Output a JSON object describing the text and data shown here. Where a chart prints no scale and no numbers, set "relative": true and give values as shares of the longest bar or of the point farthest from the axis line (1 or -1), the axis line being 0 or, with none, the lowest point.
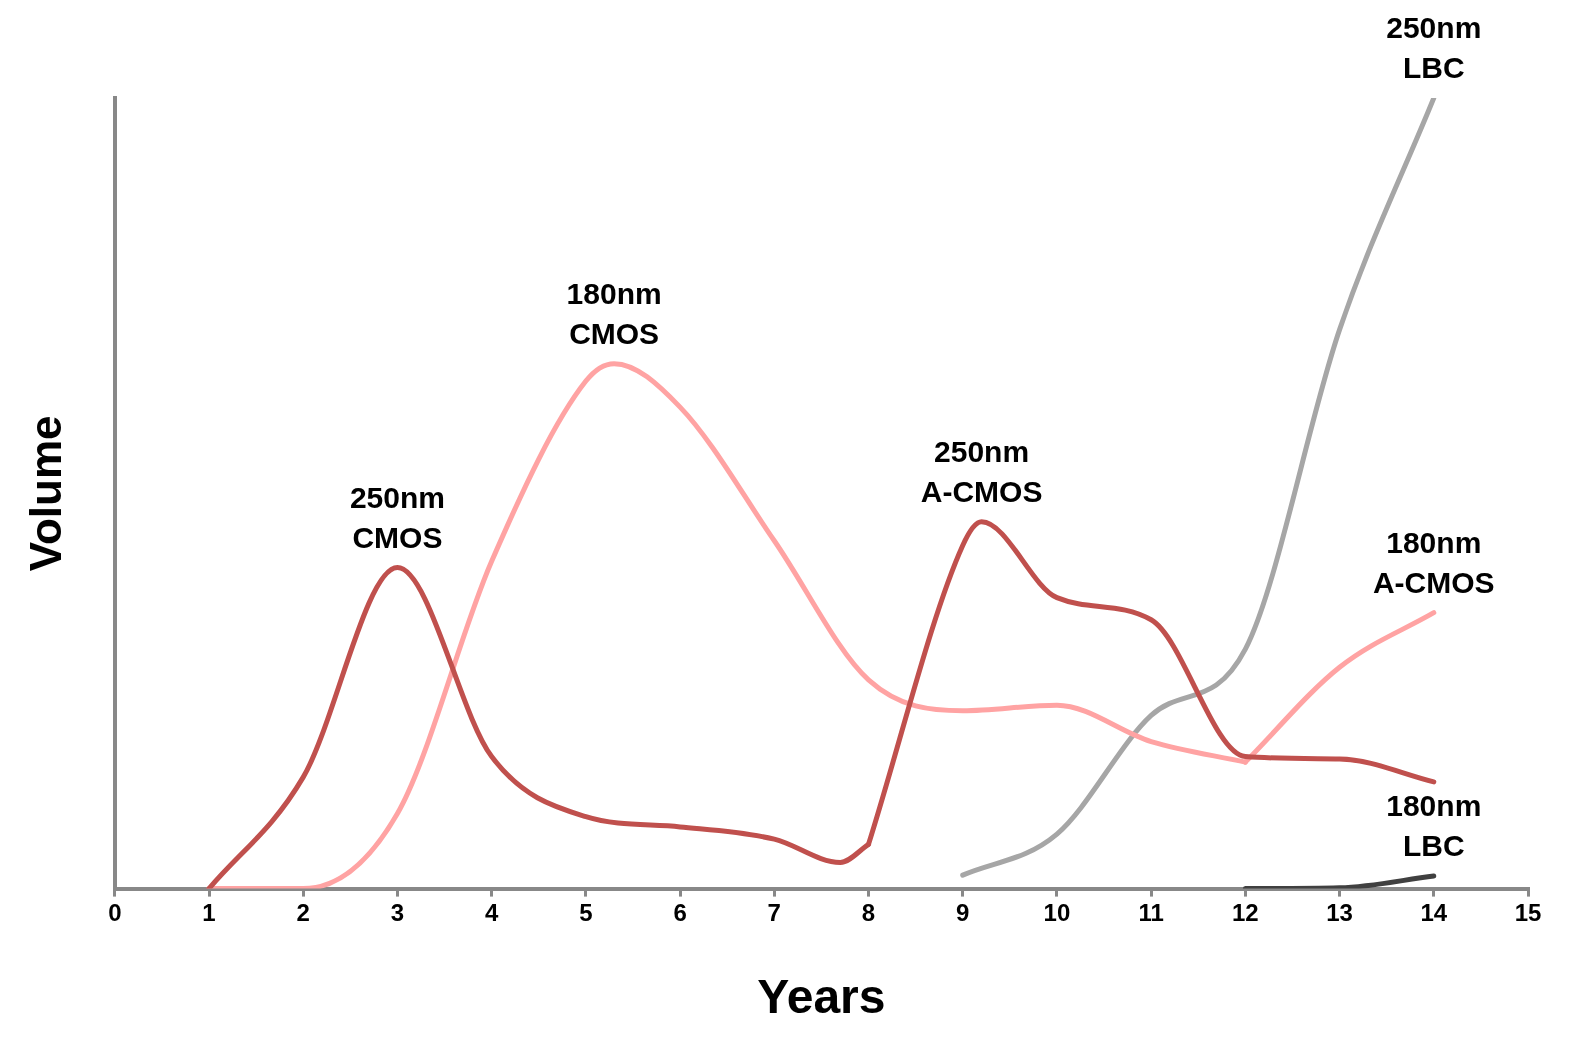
{
  "chart_data": {
    "type": "line",
    "xlabel": "Years",
    "ylabel": "Volume",
    "relative": true,
    "xlim": [
      0,
      15
    ],
    "xticks": [
      0,
      1,
      2,
      3,
      4,
      5,
      6,
      7,
      8,
      9,
      10,
      11,
      12,
      13,
      14,
      15
    ],
    "line_style": "solid",
    "marker": "none",
    "legend": false,
    "series": [
      {
        "name": "250nm CMOS",
        "color": "#c0504d",
        "x": [
          1,
          2,
          3,
          4,
          5,
          6,
          7,
          7.7,
          8
        ],
        "values": [
          0,
          0.141,
          0.406,
          0.167,
          0.091,
          0.078,
          0.0625,
          0.033,
          0.056
        ]
      },
      {
        "name": "250nm A-CMOS",
        "color": "#c0504d",
        "x": [
          8,
          9,
          9.2,
          10,
          11,
          12,
          13,
          14
        ],
        "values": [
          0.056,
          0.434,
          0.464,
          0.368,
          0.34,
          0.167,
          0.164,
          0.135
        ]
      },
      {
        "name": "180nm CMOS",
        "color": "#ffa3a3",
        "x": [
          1,
          2,
          3,
          4,
          5,
          5.3,
          6,
          7,
          8,
          9,
          10,
          11,
          12
        ],
        "values": [
          0,
          0,
          0.095,
          0.414,
          0.642,
          0.664,
          0.609,
          0.44,
          0.264,
          0.225,
          0.232,
          0.186,
          0.16
        ]
      },
      {
        "name": "180nm A-CMOS",
        "color": "#ffa3a3",
        "x": [
          12,
          13,
          14
        ],
        "values": [
          0.16,
          0.28,
          0.349
        ]
      },
      {
        "name": "250nm LBC",
        "color": "#a6a6a6",
        "x": [
          9,
          10,
          11,
          12,
          13,
          14
        ],
        "values": [
          0.017,
          0.069,
          0.219,
          0.303,
          0.707,
          1
        ]
      },
      {
        "name": "180nm LBC",
        "color": "#404040",
        "x": [
          12,
          13,
          14
        ],
        "values": [
          0,
          0.001,
          0.016
        ]
      }
    ]
  }
}
